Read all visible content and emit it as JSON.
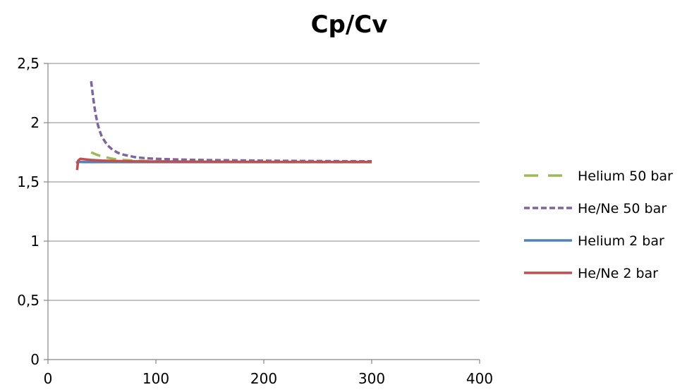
{
  "chart_data": {
    "type": "line",
    "title": "Cp/Cv",
    "xlabel": "",
    "ylabel": "",
    "xlim": [
      0,
      400
    ],
    "ylim": [
      0,
      2.5
    ],
    "x_ticks": [
      0,
      100,
      200,
      300,
      400
    ],
    "x_tick_labels": [
      "0",
      "100",
      "200",
      "300",
      "400"
    ],
    "y_ticks": [
      0,
      0.5,
      1,
      1.5,
      2,
      2.5
    ],
    "y_tick_labels": [
      "0",
      "0,5",
      "1",
      "1,5",
      "2",
      "2,5"
    ],
    "grid": "horizontal",
    "legend_position": "right",
    "series": [
      {
        "name": "Helium 50 bar",
        "color": "#9bbb59",
        "dash": "long-dash",
        "x": [
          40,
          45,
          50,
          55,
          60,
          70,
          80,
          100,
          125,
          150,
          200,
          250,
          300
        ],
        "y": [
          1.75,
          1.73,
          1.715,
          1.705,
          1.695,
          1.685,
          1.68,
          1.675,
          1.672,
          1.67,
          1.668,
          1.667,
          1.667
        ]
      },
      {
        "name": "He/Ne 50 bar",
        "color": "#8064a2",
        "dash": "short-dash",
        "x": [
          40,
          42,
          44,
          46,
          48,
          50,
          55,
          60,
          65,
          70,
          80,
          90,
          100,
          125,
          150,
          200,
          250,
          300
        ],
        "y": [
          2.35,
          2.2,
          2.08,
          1.99,
          1.93,
          1.88,
          1.81,
          1.77,
          1.745,
          1.73,
          1.71,
          1.7,
          1.695,
          1.688,
          1.684,
          1.679,
          1.676,
          1.674
        ]
      },
      {
        "name": "Helium 2 bar",
        "color": "#4f81bd",
        "dash": "solid",
        "x": [
          26,
          28,
          30,
          35,
          40,
          50,
          75,
          100,
          150,
          200,
          250,
          300
        ],
        "y": [
          1.66,
          1.668,
          1.668,
          1.667,
          1.667,
          1.667,
          1.667,
          1.667,
          1.667,
          1.667,
          1.667,
          1.667
        ]
      },
      {
        "name": "He/Ne 2 bar",
        "color": "#c0504d",
        "dash": "solid",
        "x": [
          27,
          28,
          30,
          35,
          40,
          50,
          60,
          75,
          100,
          150,
          200,
          250,
          300
        ],
        "y": [
          1.6,
          1.68,
          1.695,
          1.69,
          1.685,
          1.68,
          1.677,
          1.674,
          1.672,
          1.67,
          1.669,
          1.668,
          1.668
        ]
      }
    ]
  }
}
